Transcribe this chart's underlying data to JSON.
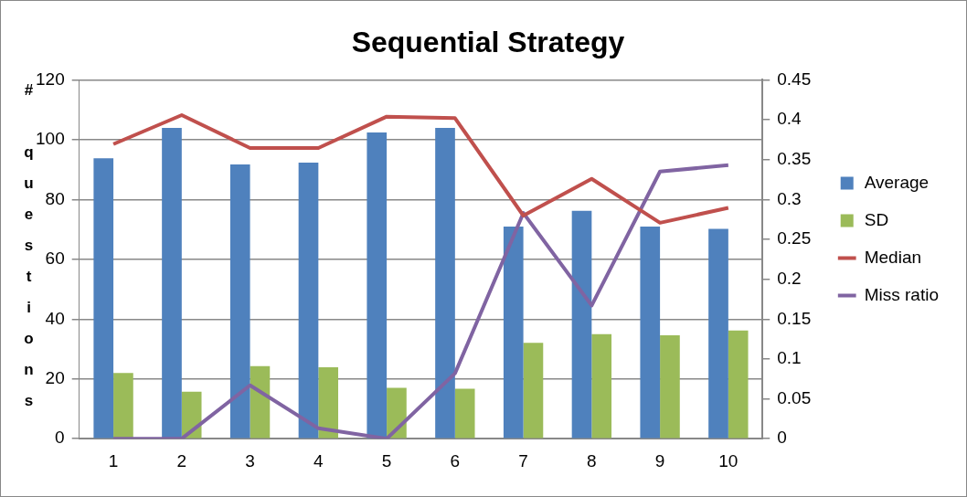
{
  "chart_data": {
    "type": "bar",
    "title": "Sequential Strategy",
    "ylabel": "# questions",
    "categories": [
      "1",
      "2",
      "3",
      "4",
      "5",
      "6",
      "7",
      "8",
      "9",
      "10"
    ],
    "series": [
      {
        "name": "Average",
        "color": "#4f81bd",
        "values": [
          93.8,
          103.9,
          91.7,
          92.3,
          102.4,
          103.9,
          70.9,
          76.2,
          70.9,
          70.2
        ]
      },
      {
        "name": "SD",
        "color": "#9bbb59",
        "values": [
          22.0,
          15.7,
          24.3,
          23.9,
          17.0,
          16.7,
          32.1,
          35.0,
          34.6,
          36.2
        ]
      },
      {
        "name": "Median",
        "type": "line",
        "color": "#c0504d",
        "values": [
          98.5,
          108.2,
          97.2,
          97.2,
          107.7,
          107.2,
          74.6,
          86.9,
          72.2,
          77.2
        ]
      },
      {
        "name": "Miss ratio",
        "type": "line",
        "axis": "y2",
        "color": "#8064a2",
        "values": [
          0,
          0,
          0.067,
          0.013,
          0,
          0.082,
          0.283,
          0.167,
          0.335,
          0.343
        ]
      }
    ],
    "ylim": [
      0,
      120
    ],
    "yticks": [
      0,
      20,
      40,
      60,
      80,
      100,
      120
    ],
    "y2lim": [
      0,
      0.45
    ],
    "y2ticks": [
      0,
      0.05,
      0.1,
      0.15,
      0.2,
      0.25,
      0.3,
      0.35,
      0.4,
      0.45
    ],
    "grid": "y",
    "legend": "right",
    "marker": "none",
    "line_style": "solid"
  }
}
